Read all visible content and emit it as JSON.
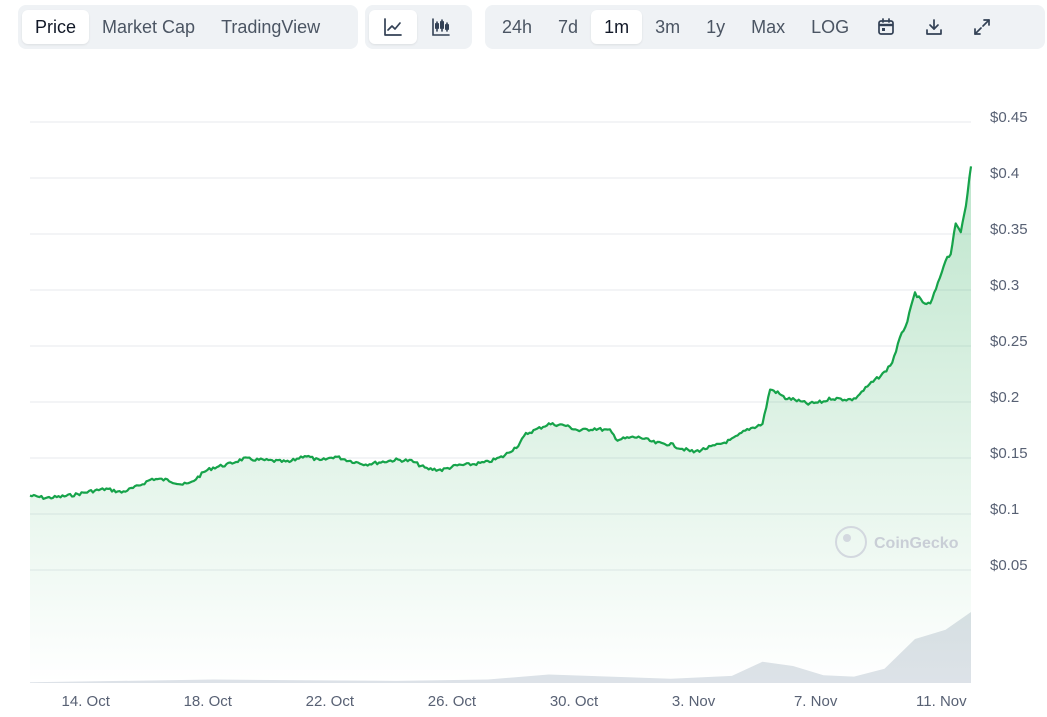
{
  "toolbar": {
    "type_tabs": [
      {
        "label": "Price",
        "active": true
      },
      {
        "label": "Market Cap",
        "active": false
      },
      {
        "label": "TradingView",
        "active": false
      }
    ],
    "view_icons": [
      "line-chart-icon",
      "candlestick-icon"
    ],
    "ranges": [
      {
        "label": "24h",
        "active": false
      },
      {
        "label": "7d",
        "active": false
      },
      {
        "label": "1m",
        "active": true
      },
      {
        "label": "3m",
        "active": false
      },
      {
        "label": "1y",
        "active": false
      },
      {
        "label": "Max",
        "active": false
      },
      {
        "label": "LOG",
        "active": false
      }
    ],
    "action_icons": [
      "calendar-icon",
      "download-icon",
      "expand-icon"
    ]
  },
  "watermark": "CoinGecko",
  "colors": {
    "line": "#16a34a",
    "fill_top": "#16a34a",
    "grid": "#e7eaee",
    "volume": "#dde2e8"
  },
  "chart_data": {
    "type": "line",
    "title": "",
    "xlabel": "",
    "ylabel": "",
    "x_range": [
      "2024-10-13",
      "2024-11-12"
    ],
    "ylim": [
      0.05,
      0.45
    ],
    "y_ticks": [
      "$0.45",
      "$0.4",
      "$0.35",
      "$0.3",
      "$0.25",
      "$0.2",
      "$0.15",
      "$0.1",
      "$0.05"
    ],
    "x_ticks": [
      {
        "date": "2024-10-14",
        "label": "14. Oct"
      },
      {
        "date": "2024-10-18",
        "label": "18. Oct"
      },
      {
        "date": "2024-10-22",
        "label": "22. Oct"
      },
      {
        "date": "2024-10-26",
        "label": "26. Oct"
      },
      {
        "date": "2024-10-30",
        "label": "30. Oct"
      },
      {
        "date": "2024-11-03",
        "label": "3. Nov"
      },
      {
        "date": "2024-11-07",
        "label": "7. Nov"
      },
      {
        "date": "2024-11-11",
        "label": "11. Nov"
      }
    ],
    "grid": true,
    "series": [
      {
        "points": [
          [
            "2024-10-13",
            0.111
          ],
          [
            "2024-10-13T12:00",
            0.109
          ],
          [
            "2024-10-14",
            0.11
          ],
          [
            "2024-10-14T12:00",
            0.112
          ],
          [
            "2024-10-15",
            0.115
          ],
          [
            "2024-10-15T12:00",
            0.117
          ],
          [
            "2024-10-16",
            0.114
          ],
          [
            "2024-10-16T12:00",
            0.119
          ],
          [
            "2024-10-17",
            0.126
          ],
          [
            "2024-10-17T12:00",
            0.125
          ],
          [
            "2024-10-18",
            0.121
          ],
          [
            "2024-10-18T06:00",
            0.122
          ],
          [
            "2024-10-18T18:00",
            0.133
          ],
          [
            "2024-10-19",
            0.136
          ],
          [
            "2024-10-19T12:00",
            0.139
          ],
          [
            "2024-10-20",
            0.144
          ],
          [
            "2024-10-20T12:00",
            0.143
          ],
          [
            "2024-10-21",
            0.142
          ],
          [
            "2024-10-21T12:00",
            0.141
          ],
          [
            "2024-10-22",
            0.147
          ],
          [
            "2024-10-22T12:00",
            0.142
          ],
          [
            "2024-10-23",
            0.146
          ],
          [
            "2024-10-23T12:00",
            0.142
          ],
          [
            "2024-10-24",
            0.139
          ],
          [
            "2024-10-24T12:00",
            0.141
          ],
          [
            "2024-10-25",
            0.143
          ],
          [
            "2024-10-25T12:00",
            0.142
          ],
          [
            "2024-10-26",
            0.135
          ],
          [
            "2024-10-26T12:00",
            0.134
          ],
          [
            "2024-10-27",
            0.138
          ],
          [
            "2024-10-27T12:00",
            0.139
          ],
          [
            "2024-10-28",
            0.141
          ],
          [
            "2024-10-28T12:00",
            0.146
          ],
          [
            "2024-10-29",
            0.156
          ],
          [
            "2024-10-29T06:00",
            0.166
          ],
          [
            "2024-10-29T18:00",
            0.172
          ],
          [
            "2024-10-30",
            0.175
          ],
          [
            "2024-10-30T12:00",
            0.174
          ],
          [
            "2024-10-31",
            0.169
          ],
          [
            "2024-10-31T12:00",
            0.171
          ],
          [
            "2024-11-01",
            0.169
          ],
          [
            "2024-11-01T06:00",
            0.161
          ],
          [
            "2024-11-01T18:00",
            0.163
          ],
          [
            "2024-11-02",
            0.163
          ],
          [
            "2024-11-02T12:00",
            0.158
          ],
          [
            "2024-11-03",
            0.157
          ],
          [
            "2024-11-03T06:00",
            0.154
          ],
          [
            "2024-11-03T18:00",
            0.15
          ],
          [
            "2024-11-04",
            0.152
          ],
          [
            "2024-11-04T12:00",
            0.156
          ],
          [
            "2024-11-05",
            0.161
          ],
          [
            "2024-11-05T12:00",
            0.17
          ],
          [
            "2024-11-06",
            0.175
          ],
          [
            "2024-11-06T06:00",
            0.206
          ],
          [
            "2024-11-06T12:00",
            0.203
          ],
          [
            "2024-11-06T18:00",
            0.198
          ],
          [
            "2024-11-07",
            0.197
          ],
          [
            "2024-11-07T12:00",
            0.193
          ],
          [
            "2024-11-08",
            0.195
          ],
          [
            "2024-11-08T06:00",
            0.198
          ],
          [
            "2024-11-08T18:00",
            0.197
          ],
          [
            "2024-11-09",
            0.197
          ],
          [
            "2024-11-09T12:00",
            0.21
          ],
          [
            "2024-11-10",
            0.221
          ],
          [
            "2024-11-10T06:00",
            0.23
          ],
          [
            "2024-11-10T12:00",
            0.251
          ],
          [
            "2024-11-10T18:00",
            0.267
          ],
          [
            "2024-11-11",
            0.292
          ],
          [
            "2024-11-11T06:00",
            0.283
          ],
          [
            "2024-11-11T12:00",
            0.282
          ],
          [
            "2024-11-11T18:00",
            0.3
          ],
          [
            "2024-11-12",
            0.322
          ],
          [
            "2024-11-12T04:00",
            0.327
          ],
          [
            "2024-11-12T08:00",
            0.353
          ],
          [
            "2024-11-12T12:00",
            0.347
          ],
          [
            "2024-11-12T16:00",
            0.371
          ],
          [
            "2024-11-12T20:00",
            0.405
          ]
        ]
      }
    ],
    "volume": [
      [
        "2024-10-13",
        0.01
      ],
      [
        "2024-10-16",
        0.03
      ],
      [
        "2024-10-19",
        0.05
      ],
      [
        "2024-10-22",
        0.04
      ],
      [
        "2024-10-25",
        0.03
      ],
      [
        "2024-10-28",
        0.05
      ],
      [
        "2024-10-30",
        0.12
      ],
      [
        "2024-11-01",
        0.09
      ],
      [
        "2024-11-03",
        0.06
      ],
      [
        "2024-11-05",
        0.1
      ],
      [
        "2024-11-06",
        0.3
      ],
      [
        "2024-11-07",
        0.24
      ],
      [
        "2024-11-08",
        0.11
      ],
      [
        "2024-11-09",
        0.09
      ],
      [
        "2024-11-10",
        0.2
      ],
      [
        "2024-11-11",
        0.62
      ],
      [
        "2024-11-12",
        0.75
      ],
      [
        "2024-11-12T20:00",
        1.0
      ]
    ]
  }
}
